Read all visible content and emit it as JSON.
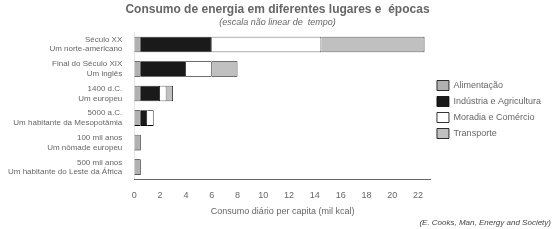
{
  "chart_data": {
    "type": "bar",
    "orientation": "horizontal",
    "stacked": true,
    "title": "Consumo de energia em diferentes lugares e  épocas",
    "subtitle": "(escala não linear de  tempo)",
    "annotations": [
      "(E. Cooks, Man, Energy and Society)"
    ],
    "x_label": "Consumo diário per capita (mil kcal)",
    "categories": [
      "Século XX\nUm norte-americano",
      "Final do Século XIX\nUm inglês",
      "1400 d.C.\nUm europeu",
      "5000 a.C.\nUm habitante da Mesopotâmia",
      "100 mil anos\nUm nômade europeu",
      "500 mil anos\nUm habitante do Leste da África"
    ],
    "series": [
      {
        "name": "Alimentação",
        "color": "#b0b0b0",
        "values": [
          0.5,
          0.5,
          0.5,
          0.5,
          0.5,
          0.5
        ]
      },
      {
        "name": "Indústria e Agricultura",
        "color": "#1a1a1a",
        "values": [
          5.5,
          3.5,
          1.5,
          0.5,
          0.0,
          0.0
        ]
      },
      {
        "name": "Moradia e Comércio",
        "color": "#ffffff",
        "values": [
          8.5,
          2.0,
          0.5,
          0.5,
          0.0,
          0.0
        ]
      },
      {
        "name": "Transporte",
        "color": "#c0c0c0",
        "values": [
          8.0,
          2.0,
          0.5,
          0.0,
          0.0,
          0.0
        ]
      }
    ],
    "xlim": [
      0,
      23
    ],
    "xticks": [
      0,
      2,
      4,
      6,
      8,
      10,
      12,
      14,
      16,
      18,
      20,
      22
    ],
    "grid": false,
    "legend": "right"
  }
}
